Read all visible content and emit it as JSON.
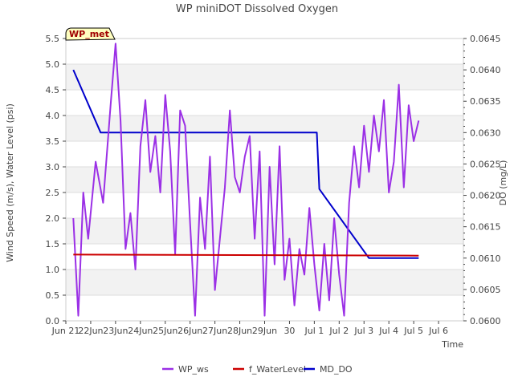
{
  "chart_data": {
    "type": "line",
    "title": "WP miniDOT Dissolved Oxygen",
    "station_label": "WP_met",
    "xlabel": "Time",
    "ylabel_left": "Wind Speed (m/s), Water Level (psi)",
    "ylabel_right": "DO (mg/L)",
    "x_range_days": [
      0,
      16
    ],
    "x_ticks": [
      {
        "day": 0,
        "label": "Jun 21"
      },
      {
        "day": 1,
        "label": "22Jun"
      },
      {
        "day": 2,
        "label": "23Jun"
      },
      {
        "day": 3,
        "label": "24Jun"
      },
      {
        "day": 4,
        "label": "25Jun"
      },
      {
        "day": 5,
        "label": "26Jun"
      },
      {
        "day": 6,
        "label": "27Jun"
      },
      {
        "day": 7,
        "label": "28Jun"
      },
      {
        "day": 8,
        "label": "29Jun"
      },
      {
        "day": 9,
        "label": "30"
      },
      {
        "day": 10,
        "label": "Jul 1"
      },
      {
        "day": 11,
        "label": "Jul 2"
      },
      {
        "day": 12,
        "label": "Jul 3"
      },
      {
        "day": 13,
        "label": "Jul 4"
      },
      {
        "day": 14,
        "label": "Jul 5"
      },
      {
        "day": 15,
        "label": "Jul 6"
      }
    ],
    "ylim_left": [
      0,
      5.5
    ],
    "yticks_left": [
      "0.0",
      "0.5",
      "1.0",
      "1.5",
      "2.0",
      "2.5",
      "3.0",
      "3.5",
      "4.0",
      "4.5",
      "5.0",
      "5.5"
    ],
    "ylim_right": [
      0.06,
      0.0645
    ],
    "yticks_right": [
      "0.0600",
      "0.0605",
      "0.0610",
      "0.0615",
      "0.0620",
      "0.0625",
      "0.0630",
      "0.0635",
      "0.0640",
      "0.0645"
    ],
    "legend_placement": "bottom",
    "series": [
      {
        "name": "WP_ws",
        "color": "#9b30e6",
        "axis": "left",
        "x": [
          0.3,
          0.5,
          0.7,
          0.9,
          1.2,
          1.5,
          1.8,
          2.0,
          2.2,
          2.4,
          2.6,
          2.8,
          3.0,
          3.2,
          3.4,
          3.6,
          3.8,
          4.0,
          4.2,
          4.4,
          4.6,
          4.8,
          5.0,
          5.2,
          5.4,
          5.6,
          5.8,
          6.0,
          6.2,
          6.4,
          6.6,
          6.8,
          7.0,
          7.2,
          7.4,
          7.6,
          7.8,
          8.0,
          8.2,
          8.4,
          8.6,
          8.8,
          9.0,
          9.2,
          9.4,
          9.6,
          9.8,
          10.0,
          10.2,
          10.4,
          10.6,
          10.8,
          11.0,
          11.2,
          11.4,
          11.6,
          11.8,
          12.0,
          12.2,
          12.4,
          12.6,
          12.8,
          13.0,
          13.2,
          13.4,
          13.6,
          13.8,
          14.0,
          14.2
        ],
        "y": [
          2.0,
          0.1,
          2.5,
          1.6,
          3.1,
          2.3,
          4.2,
          5.4,
          3.9,
          1.4,
          2.1,
          1.0,
          3.4,
          4.3,
          2.9,
          3.6,
          2.5,
          4.4,
          3.3,
          1.3,
          4.1,
          3.8,
          1.9,
          0.1,
          2.4,
          1.4,
          3.2,
          0.6,
          1.6,
          2.6,
          4.1,
          2.8,
          2.5,
          3.2,
          3.6,
          1.6,
          3.3,
          0.1,
          3.0,
          1.1,
          3.4,
          0.8,
          1.6,
          0.3,
          1.4,
          0.9,
          2.2,
          1.1,
          0.2,
          1.5,
          0.4,
          2.0,
          0.9,
          0.1,
          2.3,
          3.4,
          2.6,
          3.8,
          2.9,
          4.0,
          3.3,
          4.3,
          2.5,
          3.1,
          4.6,
          2.6,
          4.2,
          3.5,
          3.9
        ]
      },
      {
        "name": "f_WaterLevel",
        "color": "#cc0000",
        "axis": "left",
        "x": [
          0.3,
          14.2
        ],
        "y": [
          1.29,
          1.27
        ]
      },
      {
        "name": "MD_DO",
        "color": "#0000cc",
        "axis": "right",
        "x": [
          0.3,
          1.4,
          2.8,
          5.6,
          8.2,
          10.1,
          10.2,
          12.2,
          13.0,
          14.2
        ],
        "y": [
          0.064,
          0.063,
          0.063,
          0.063,
          0.063,
          0.063,
          0.0621,
          0.061,
          0.061,
          0.061
        ]
      }
    ]
  }
}
